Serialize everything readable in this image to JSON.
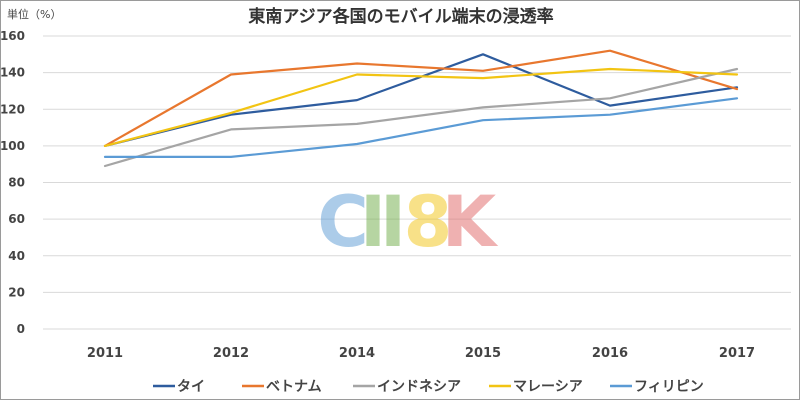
{
  "chart_data": {
    "type": "line",
    "title": "東南アジア各国のモバイル端末の浸透率",
    "ylabel": "単位（%）",
    "xlabel": "",
    "categories": [
      "2011",
      "2012",
      "2014",
      "2015",
      "2016",
      "2017"
    ],
    "ylim": [
      0,
      160
    ],
    "yticks": [
      0,
      20,
      40,
      60,
      80,
      100,
      120,
      140,
      160
    ],
    "grid": true,
    "legend": "bottom",
    "series": [
      {
        "name": "タイ",
        "color": "#2e5c9e",
        "values": [
          100,
          117,
          125,
          150,
          122,
          132
        ]
      },
      {
        "name": "ベトナム",
        "color": "#e8772e",
        "values": [
          100,
          139,
          145,
          141,
          152,
          131
        ]
      },
      {
        "name": "インドネシア",
        "color": "#a5a5a5",
        "values": [
          89,
          109,
          112,
          121,
          126,
          142
        ]
      },
      {
        "name": "マレーシア",
        "color": "#f2c413",
        "values": [
          100,
          118,
          139,
          137,
          142,
          139
        ]
      },
      {
        "name": "フィリピン",
        "color": "#5b9bd5",
        "values": [
          94,
          94,
          101,
          114,
          117,
          126
        ]
      }
    ]
  },
  "watermark": {
    "letters": [
      "C",
      "I",
      "I",
      "8",
      "K"
    ],
    "colors": [
      "#5b9bd5",
      "#70ad47",
      "#70ad47",
      "#f2c413",
      "#e06666"
    ]
  }
}
